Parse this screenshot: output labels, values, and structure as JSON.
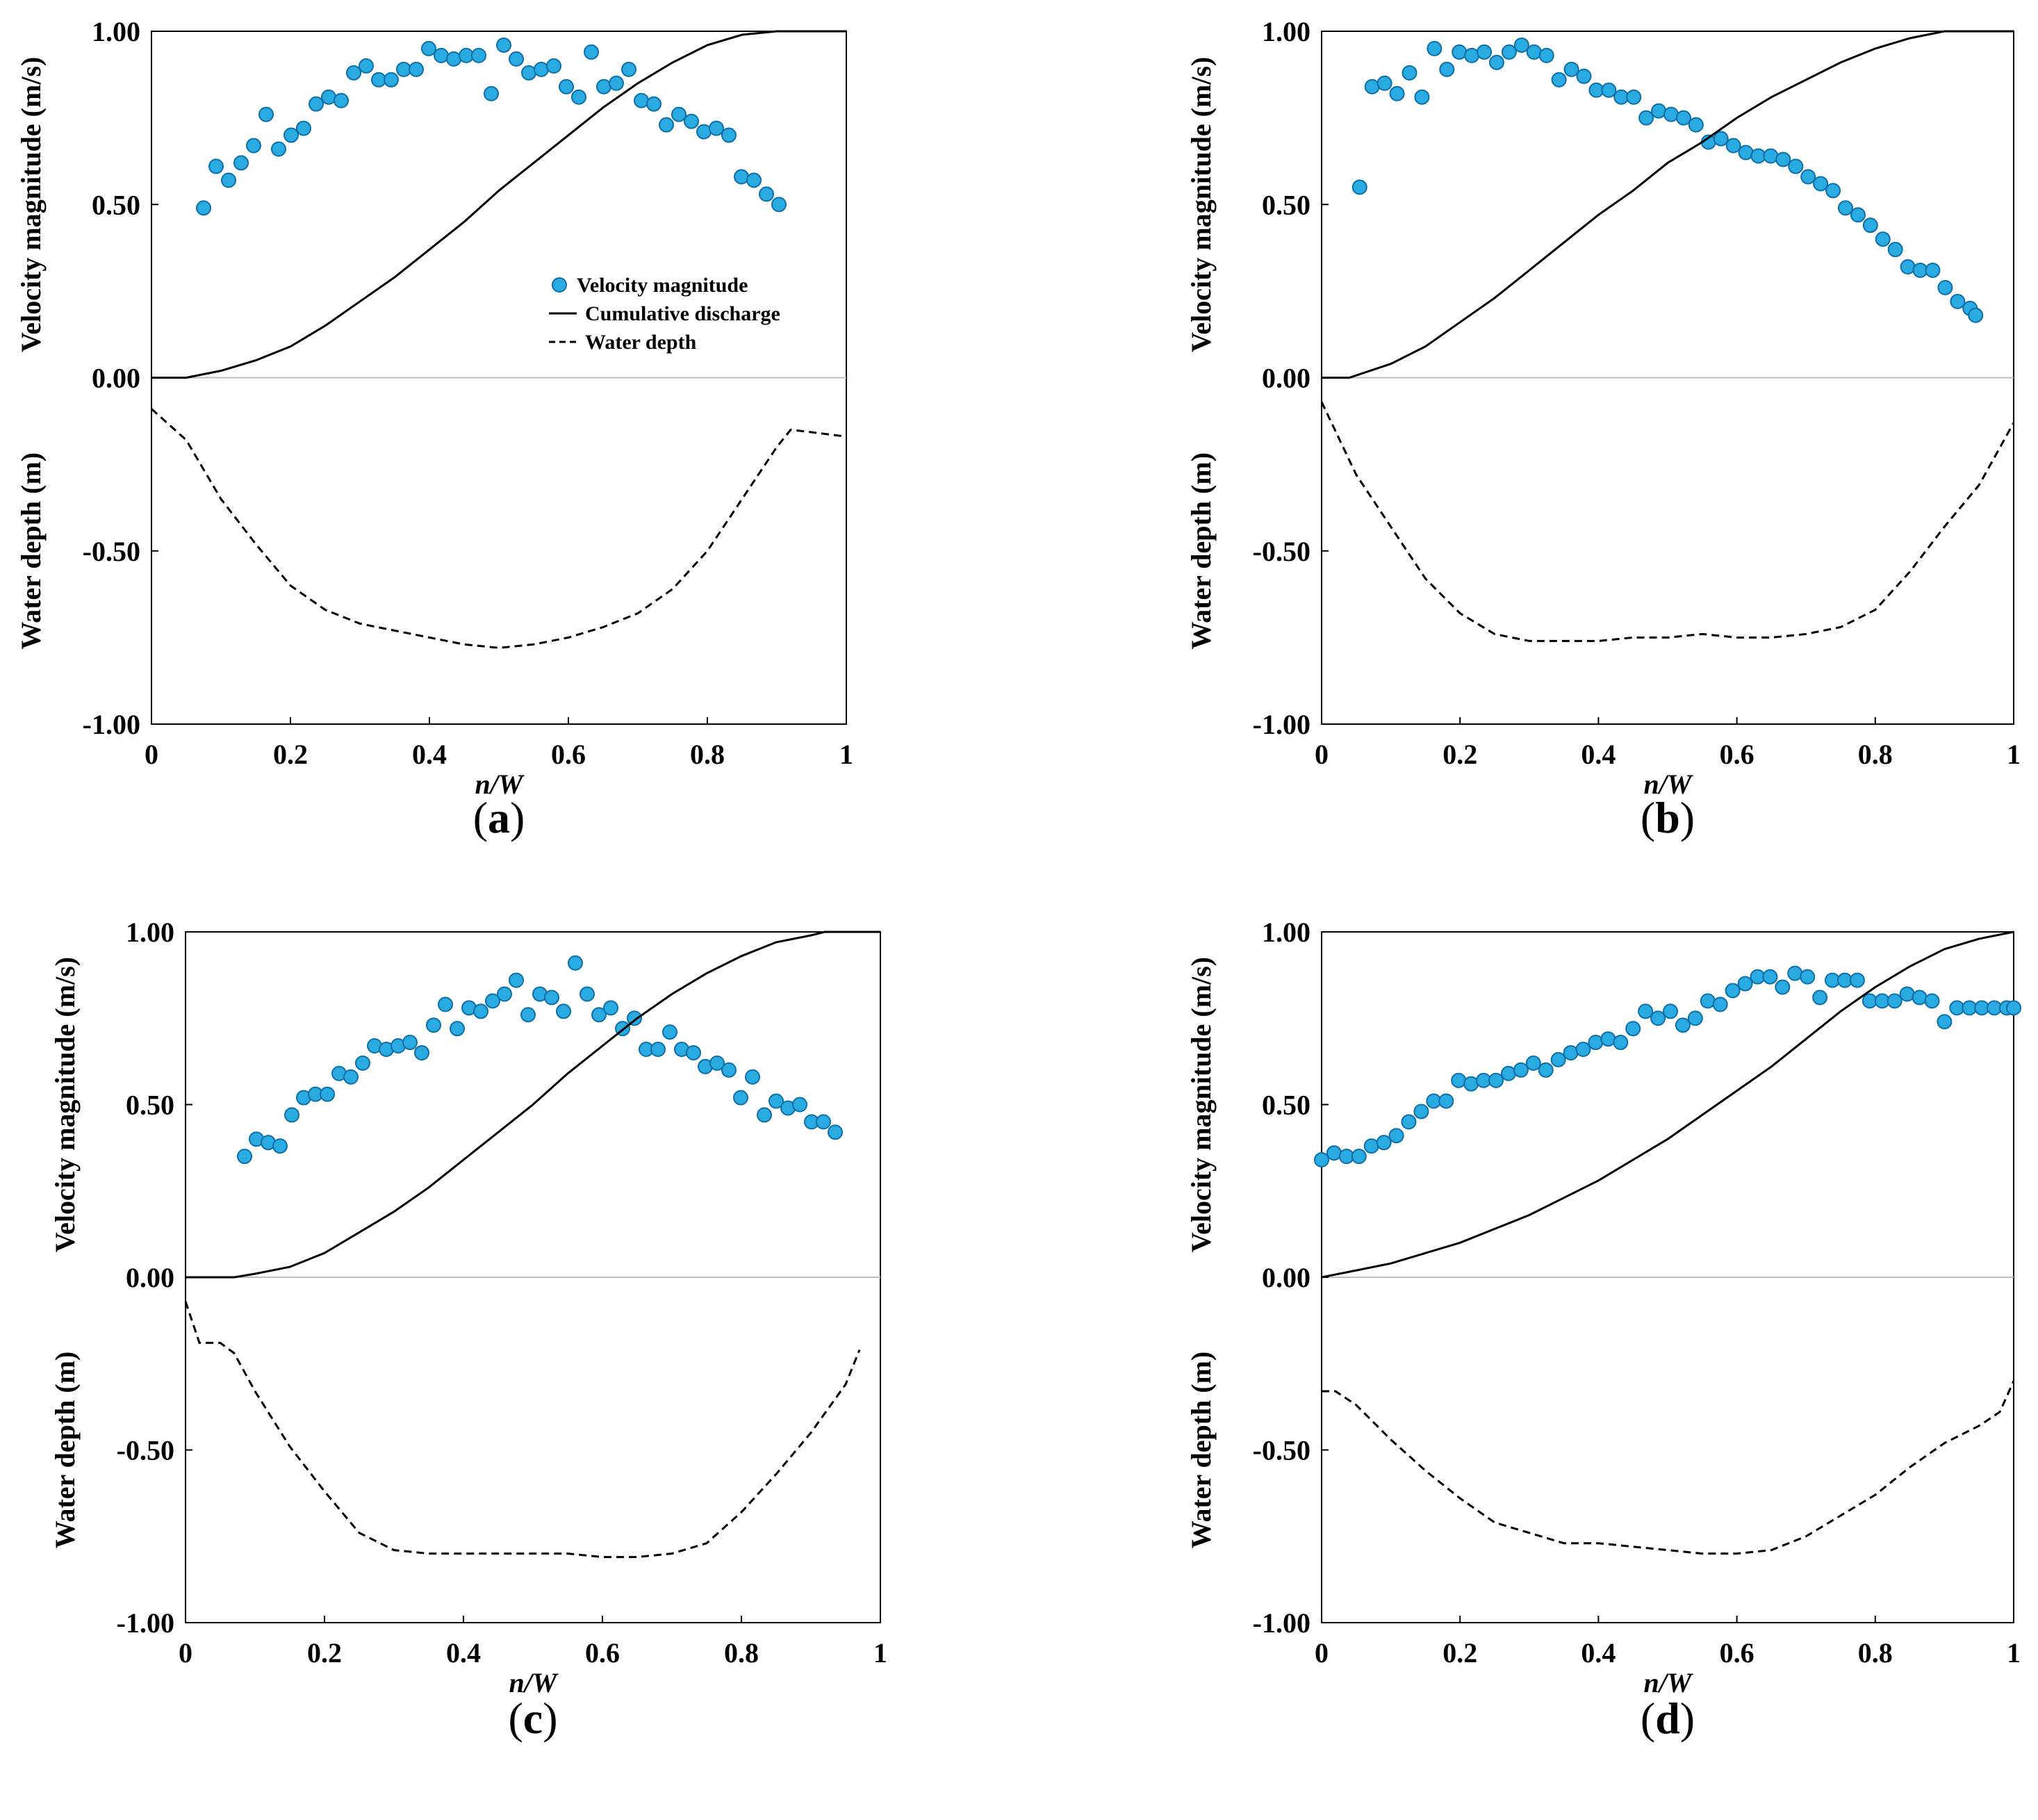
{
  "legend": {
    "velocity_label": "Velocity magnitude",
    "cumulative_label": "Cumulative discharge",
    "depth_label": "Water depth"
  },
  "colors": {
    "marker_fill": "#29abe2",
    "marker_edge": "#0d6ea8",
    "line": "#000000"
  },
  "chart_data": [
    {
      "type": "scatter",
      "panel_label": "(a)",
      "label_prefix": "(",
      "label_letter": "a",
      "label_suffix": ")",
      "xlabel": "n/W",
      "ylabel_top": "Velocity magnitude (m/s)",
      "ylabel_bottom": "Water depth (m)",
      "xlim": [
        0,
        1
      ],
      "ylim": [
        -1,
        1
      ],
      "x_ticks": [
        "0",
        "0.2",
        "0.4",
        "0.6",
        "0.8",
        "1"
      ],
      "y_ticks": [
        "1.00",
        "0.50",
        "0.00",
        "-0.50",
        "-1.00"
      ],
      "legend_position": "inside-right",
      "series": [
        {
          "name": "Velocity magnitude",
          "kind": "points",
          "x": [
            0.075,
            0.093,
            0.111,
            0.129,
            0.147,
            0.165,
            0.183,
            0.201,
            0.219,
            0.237,
            0.255,
            0.273,
            0.291,
            0.309,
            0.327,
            0.345,
            0.363,
            0.381,
            0.399,
            0.417,
            0.435,
            0.453,
            0.471,
            0.489,
            0.507,
            0.525,
            0.543,
            0.561,
            0.579,
            0.597,
            0.615,
            0.633,
            0.651,
            0.669,
            0.687,
            0.705,
            0.723,
            0.741,
            0.759,
            0.777,
            0.795,
            0.813,
            0.831,
            0.849,
            0.867,
            0.885,
            0.903
          ],
          "y": [
            0.49,
            0.61,
            0.57,
            0.62,
            0.67,
            0.76,
            0.66,
            0.7,
            0.72,
            0.79,
            0.81,
            0.8,
            0.88,
            0.9,
            0.86,
            0.86,
            0.89,
            0.89,
            0.95,
            0.93,
            0.92,
            0.93,
            0.93,
            0.82,
            0.96,
            0.92,
            0.88,
            0.89,
            0.9,
            0.84,
            0.81,
            0.94,
            0.84,
            0.85,
            0.89,
            0.8,
            0.79,
            0.73,
            0.76,
            0.74,
            0.71,
            0.72,
            0.7,
            0.58,
            0.57,
            0.53,
            0.5
          ]
        },
        {
          "name": "Cumulative discharge",
          "kind": "solid",
          "x": [
            0,
            0.05,
            0.1,
            0.15,
            0.2,
            0.25,
            0.3,
            0.35,
            0.4,
            0.45,
            0.5,
            0.55,
            0.6,
            0.65,
            0.7,
            0.75,
            0.8,
            0.85,
            0.9,
            1.0
          ],
          "y": [
            0,
            0,
            0.02,
            0.05,
            0.09,
            0.15,
            0.22,
            0.29,
            0.37,
            0.45,
            0.54,
            0.62,
            0.7,
            0.78,
            0.85,
            0.91,
            0.96,
            0.99,
            1.0,
            1.0
          ]
        },
        {
          "name": "Water depth",
          "kind": "dashed",
          "x": [
            0,
            0.05,
            0.1,
            0.15,
            0.2,
            0.25,
            0.3,
            0.35,
            0.4,
            0.45,
            0.5,
            0.55,
            0.6,
            0.65,
            0.7,
            0.75,
            0.8,
            0.85,
            0.9,
            0.92,
            1.0
          ],
          "y": [
            -0.09,
            -0.18,
            -0.35,
            -0.48,
            -0.6,
            -0.67,
            -0.71,
            -0.73,
            -0.75,
            -0.77,
            -0.78,
            -0.77,
            -0.75,
            -0.72,
            -0.68,
            -0.61,
            -0.5,
            -0.35,
            -0.2,
            -0.15,
            -0.17
          ]
        }
      ]
    },
    {
      "type": "scatter",
      "panel_label": "(b)",
      "label_prefix": "(",
      "label_letter": "b",
      "label_suffix": ")",
      "xlabel": "n/W",
      "ylabel_top": "Velocity magnitude (m/s)",
      "ylabel_bottom": "Water depth (m)",
      "xlim": [
        0,
        1
      ],
      "ylim": [
        -1,
        1
      ],
      "x_ticks": [
        "0",
        "0.2",
        "0.4",
        "0.6",
        "0.8",
        "1"
      ],
      "y_ticks": [
        "1.00",
        "0.50",
        "0.00",
        "-0.50",
        "-1.00"
      ],
      "series": [
        {
          "name": "Velocity magnitude",
          "kind": "points",
          "x": [
            0.055,
            0.073,
            0.091,
            0.109,
            0.127,
            0.145,
            0.163,
            0.181,
            0.199,
            0.217,
            0.235,
            0.253,
            0.271,
            0.289,
            0.307,
            0.325,
            0.343,
            0.361,
            0.379,
            0.397,
            0.415,
            0.433,
            0.451,
            0.469,
            0.487,
            0.505,
            0.523,
            0.541,
            0.559,
            0.577,
            0.595,
            0.613,
            0.631,
            0.649,
            0.667,
            0.685,
            0.703,
            0.721,
            0.739,
            0.757,
            0.775,
            0.793,
            0.811,
            0.829,
            0.847,
            0.865,
            0.883,
            0.901,
            0.919,
            0.937,
            0.945
          ],
          "y": [
            0.55,
            0.84,
            0.85,
            0.82,
            0.88,
            0.81,
            0.95,
            0.89,
            0.94,
            0.93,
            0.94,
            0.91,
            0.94,
            0.96,
            0.94,
            0.93,
            0.86,
            0.89,
            0.87,
            0.83,
            0.83,
            0.81,
            0.81,
            0.75,
            0.77,
            0.76,
            0.75,
            0.73,
            0.68,
            0.69,
            0.67,
            0.65,
            0.64,
            0.64,
            0.63,
            0.61,
            0.58,
            0.56,
            0.54,
            0.49,
            0.47,
            0.44,
            0.4,
            0.37,
            0.32,
            0.31,
            0.31,
            0.26,
            0.22,
            0.2,
            0.18
          ]
        },
        {
          "name": "Cumulative discharge",
          "kind": "solid",
          "x": [
            0,
            0.04,
            0.1,
            0.15,
            0.2,
            0.25,
            0.3,
            0.35,
            0.4,
            0.45,
            0.5,
            0.55,
            0.6,
            0.65,
            0.7,
            0.75,
            0.8,
            0.85,
            0.9,
            0.95,
            1.0
          ],
          "y": [
            0,
            0,
            0.04,
            0.09,
            0.16,
            0.23,
            0.31,
            0.39,
            0.47,
            0.54,
            0.62,
            0.68,
            0.75,
            0.81,
            0.86,
            0.91,
            0.95,
            0.98,
            1.0,
            1.0,
            1.0
          ]
        },
        {
          "name": "Water depth",
          "kind": "dashed",
          "x": [
            0,
            0.05,
            0.1,
            0.15,
            0.2,
            0.25,
            0.3,
            0.35,
            0.4,
            0.45,
            0.5,
            0.55,
            0.6,
            0.65,
            0.7,
            0.75,
            0.8,
            0.85,
            0.9,
            0.95,
            1.0
          ],
          "y": [
            -0.07,
            -0.28,
            -0.43,
            -0.58,
            -0.68,
            -0.74,
            -0.76,
            -0.76,
            -0.76,
            -0.75,
            -0.75,
            -0.74,
            -0.75,
            -0.75,
            -0.74,
            -0.72,
            -0.67,
            -0.56,
            -0.43,
            -0.31,
            -0.13
          ]
        }
      ]
    },
    {
      "type": "scatter",
      "panel_label": "(c)",
      "label_prefix": "(",
      "label_letter": "c",
      "label_suffix": ")",
      "xlabel": "n/W",
      "ylabel_top": "Velocity magnitude (m/s)",
      "ylabel_bottom": "Water depth (m)",
      "xlim": [
        0,
        1
      ],
      "ylim": [
        -1,
        1
      ],
      "x_ticks": [
        "0",
        "0.2",
        "0.4",
        "0.6",
        "0.8",
        "1"
      ],
      "y_ticks": [
        "1.00",
        "0.50",
        "0.00",
        "-0.50",
        "-1.00"
      ],
      "series": [
        {
          "name": "Velocity magnitude",
          "kind": "points",
          "x": [
            0.085,
            0.102,
            0.119,
            0.136,
            0.153,
            0.17,
            0.187,
            0.204,
            0.221,
            0.238,
            0.255,
            0.272,
            0.289,
            0.306,
            0.323,
            0.34,
            0.357,
            0.374,
            0.391,
            0.408,
            0.425,
            0.442,
            0.459,
            0.476,
            0.493,
            0.51,
            0.527,
            0.544,
            0.561,
            0.578,
            0.595,
            0.612,
            0.629,
            0.646,
            0.663,
            0.68,
            0.697,
            0.714,
            0.731,
            0.748,
            0.765,
            0.782,
            0.799,
            0.816,
            0.833,
            0.85,
            0.867,
            0.884,
            0.901,
            0.918,
            0.935
          ],
          "y": [
            0.35,
            0.4,
            0.39,
            0.38,
            0.47,
            0.52,
            0.53,
            0.53,
            0.59,
            0.58,
            0.62,
            0.67,
            0.66,
            0.67,
            0.68,
            0.65,
            0.73,
            0.79,
            0.72,
            0.78,
            0.77,
            0.8,
            0.82,
            0.86,
            0.76,
            0.82,
            0.81,
            0.77,
            0.91,
            0.82,
            0.76,
            0.78,
            0.72,
            0.75,
            0.66,
            0.66,
            0.71,
            0.66,
            0.65,
            0.61,
            0.62,
            0.6,
            0.52,
            0.58,
            0.47,
            0.51,
            0.49,
            0.5,
            0.45,
            0.45,
            0.42
          ]
        },
        {
          "name": "Cumulative discharge",
          "kind": "solid",
          "x": [
            0,
            0.07,
            0.1,
            0.15,
            0.2,
            0.25,
            0.3,
            0.35,
            0.4,
            0.45,
            0.5,
            0.55,
            0.6,
            0.65,
            0.7,
            0.75,
            0.8,
            0.85,
            0.9,
            0.92,
            1.0
          ],
          "y": [
            0,
            0,
            0.01,
            0.03,
            0.07,
            0.13,
            0.19,
            0.26,
            0.34,
            0.42,
            0.5,
            0.59,
            0.67,
            0.75,
            0.82,
            0.88,
            0.93,
            0.97,
            0.99,
            1.0,
            1.0
          ]
        },
        {
          "name": "Water depth",
          "kind": "dashed",
          "x": [
            0,
            0.02,
            0.05,
            0.07,
            0.1,
            0.15,
            0.2,
            0.25,
            0.3,
            0.35,
            0.4,
            0.45,
            0.5,
            0.55,
            0.6,
            0.65,
            0.7,
            0.75,
            0.8,
            0.85,
            0.9,
            0.95,
            0.97
          ],
          "y": [
            -0.07,
            -0.19,
            -0.19,
            -0.22,
            -0.33,
            -0.49,
            -0.62,
            -0.74,
            -0.79,
            -0.8,
            -0.8,
            -0.8,
            -0.8,
            -0.8,
            -0.81,
            -0.81,
            -0.8,
            -0.77,
            -0.68,
            -0.57,
            -0.45,
            -0.31,
            -0.21
          ]
        }
      ]
    },
    {
      "type": "scatter",
      "panel_label": "(d)",
      "label_prefix": "(",
      "label_letter": "d",
      "label_suffix": ")",
      "xlabel": "n/W",
      "ylabel_top": "Velocity magnitude (m/s)",
      "ylabel_bottom": "Water depth (m)",
      "xlim": [
        0,
        1
      ],
      "ylim": [
        -1,
        1
      ],
      "x_ticks": [
        "0",
        "0.2",
        "0.4",
        "0.6",
        "0.8",
        "1"
      ],
      "y_ticks": [
        "1.00",
        "0.50",
        "0.00",
        "-0.50",
        "-1.00"
      ],
      "series": [
        {
          "name": "Velocity magnitude",
          "kind": "points",
          "x": [
            0.0,
            0.018,
            0.036,
            0.054,
            0.072,
            0.09,
            0.108,
            0.126,
            0.144,
            0.162,
            0.18,
            0.198,
            0.216,
            0.234,
            0.252,
            0.27,
            0.288,
            0.306,
            0.324,
            0.342,
            0.36,
            0.378,
            0.396,
            0.414,
            0.432,
            0.45,
            0.468,
            0.486,
            0.504,
            0.522,
            0.54,
            0.558,
            0.576,
            0.594,
            0.612,
            0.63,
            0.648,
            0.666,
            0.684,
            0.702,
            0.72,
            0.738,
            0.756,
            0.774,
            0.792,
            0.81,
            0.828,
            0.846,
            0.864,
            0.882,
            0.9,
            0.918,
            0.936,
            0.954,
            0.972,
            0.99,
            1.0
          ],
          "y": [
            0.34,
            0.36,
            0.35,
            0.35,
            0.38,
            0.39,
            0.41,
            0.45,
            0.48,
            0.51,
            0.51,
            0.57,
            0.56,
            0.57,
            0.57,
            0.59,
            0.6,
            0.62,
            0.6,
            0.63,
            0.65,
            0.66,
            0.68,
            0.69,
            0.68,
            0.72,
            0.77,
            0.75,
            0.77,
            0.73,
            0.75,
            0.8,
            0.79,
            0.83,
            0.85,
            0.87,
            0.87,
            0.84,
            0.88,
            0.87,
            0.81,
            0.86,
            0.86,
            0.86,
            0.8,
            0.8,
            0.8,
            0.82,
            0.81,
            0.8,
            0.74,
            0.78,
            0.78,
            0.78,
            0.78,
            0.78,
            0.78
          ]
        },
        {
          "name": "Cumulative discharge",
          "kind": "solid",
          "x": [
            0,
            0.05,
            0.1,
            0.15,
            0.2,
            0.25,
            0.3,
            0.35,
            0.4,
            0.45,
            0.5,
            0.55,
            0.6,
            0.65,
            0.7,
            0.75,
            0.8,
            0.85,
            0.9,
            0.95,
            1.0
          ],
          "y": [
            0,
            0.02,
            0.04,
            0.07,
            0.1,
            0.14,
            0.18,
            0.23,
            0.28,
            0.34,
            0.4,
            0.47,
            0.54,
            0.61,
            0.69,
            0.77,
            0.84,
            0.9,
            0.95,
            0.98,
            1.0
          ]
        },
        {
          "name": "Water depth",
          "kind": "dashed",
          "x": [
            0,
            0.02,
            0.05,
            0.1,
            0.15,
            0.2,
            0.25,
            0.3,
            0.35,
            0.4,
            0.45,
            0.5,
            0.55,
            0.6,
            0.65,
            0.7,
            0.75,
            0.8,
            0.85,
            0.9,
            0.95,
            0.98,
            1.0
          ],
          "y": [
            -0.33,
            -0.33,
            -0.37,
            -0.47,
            -0.56,
            -0.64,
            -0.71,
            -0.74,
            -0.77,
            -0.77,
            -0.78,
            -0.79,
            -0.8,
            -0.8,
            -0.79,
            -0.75,
            -0.69,
            -0.63,
            -0.55,
            -0.48,
            -0.43,
            -0.39,
            -0.3
          ]
        }
      ]
    }
  ]
}
